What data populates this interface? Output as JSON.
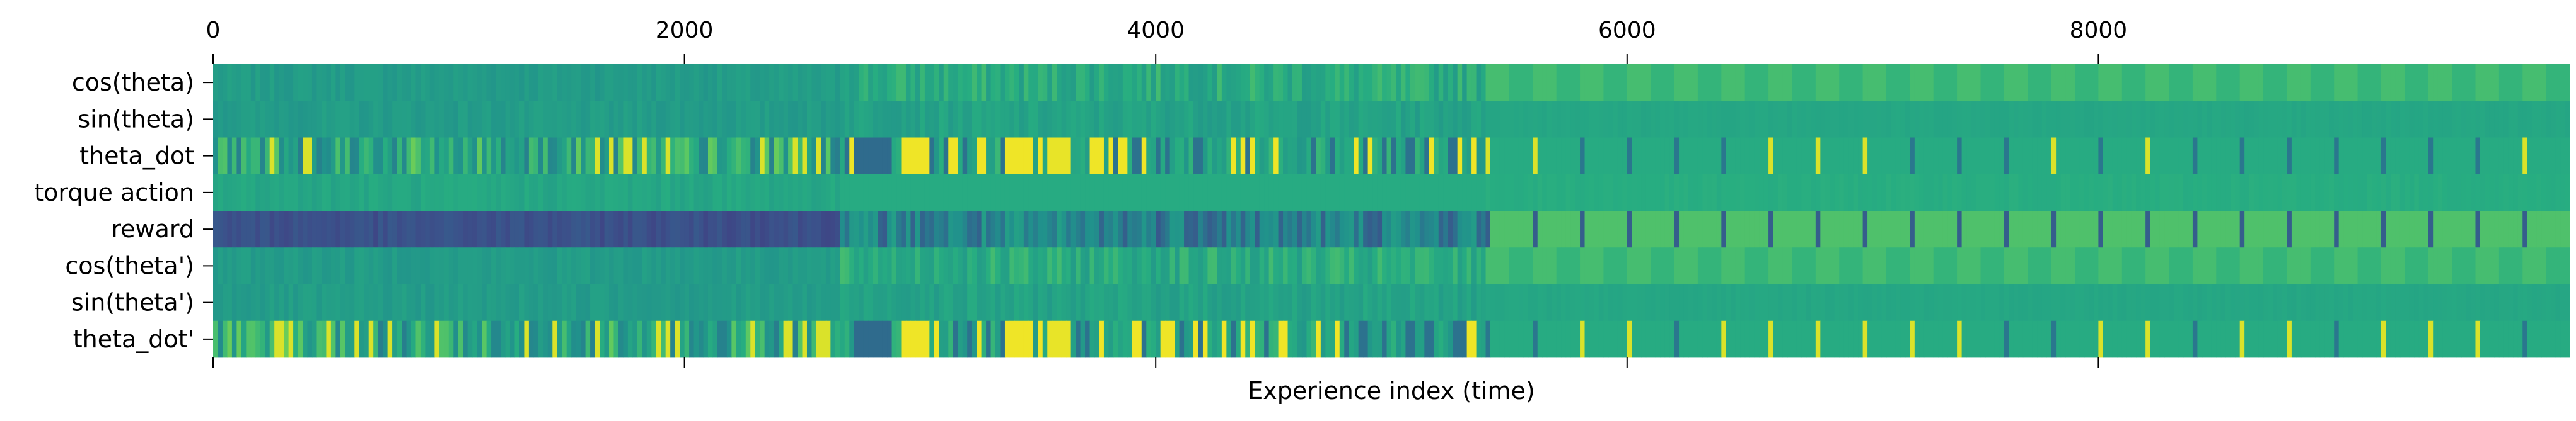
{
  "chart_data": {
    "type": "heatmap",
    "title": "",
    "xlabel": "Experience index (time)",
    "ylabel": "",
    "xlim": [
      0,
      10000
    ],
    "x_ticks": [
      0,
      2000,
      4000,
      6000,
      8000
    ],
    "x_tick_labels": [
      "0",
      "2000",
      "4000",
      "6000",
      "8000"
    ],
    "x_tick_position": "top and bottom (labels on top)",
    "rows": [
      "cos(theta)",
      "sin(theta)",
      "theta_dot",
      "torque action",
      "reward",
      "cos(theta')",
      "sin(theta')",
      "theta_dot'"
    ],
    "colormap": "viridis",
    "colorbar": false,
    "grid": false,
    "phases": [
      {
        "start": 0,
        "end": 2650,
        "description": "random exploration: dense fine striping, low reward"
      },
      {
        "start": 2650,
        "end": 5400,
        "description": "transition: large theta_dot swings, mixed reward"
      },
      {
        "start": 5400,
        "end": 10000,
        "description": "balanced: periodic episode starts, high reward"
      }
    ],
    "row_levels": {
      "cos(theta)": [
        0.55,
        0.62,
        0.72
      ],
      "sin(theta)": [
        0.55,
        0.58,
        0.6
      ],
      "theta_dot": [
        0.6,
        0.55,
        0.62
      ],
      "torque action": [
        0.6,
        0.62,
        0.63
      ],
      "reward": [
        0.25,
        0.35,
        0.7
      ],
      "cos(theta')": [
        0.55,
        0.62,
        0.72
      ],
      "sin(theta')": [
        0.55,
        0.58,
        0.6
      ],
      "theta_dot'": [
        0.6,
        0.55,
        0.62
      ]
    },
    "episode_period": 200
  }
}
